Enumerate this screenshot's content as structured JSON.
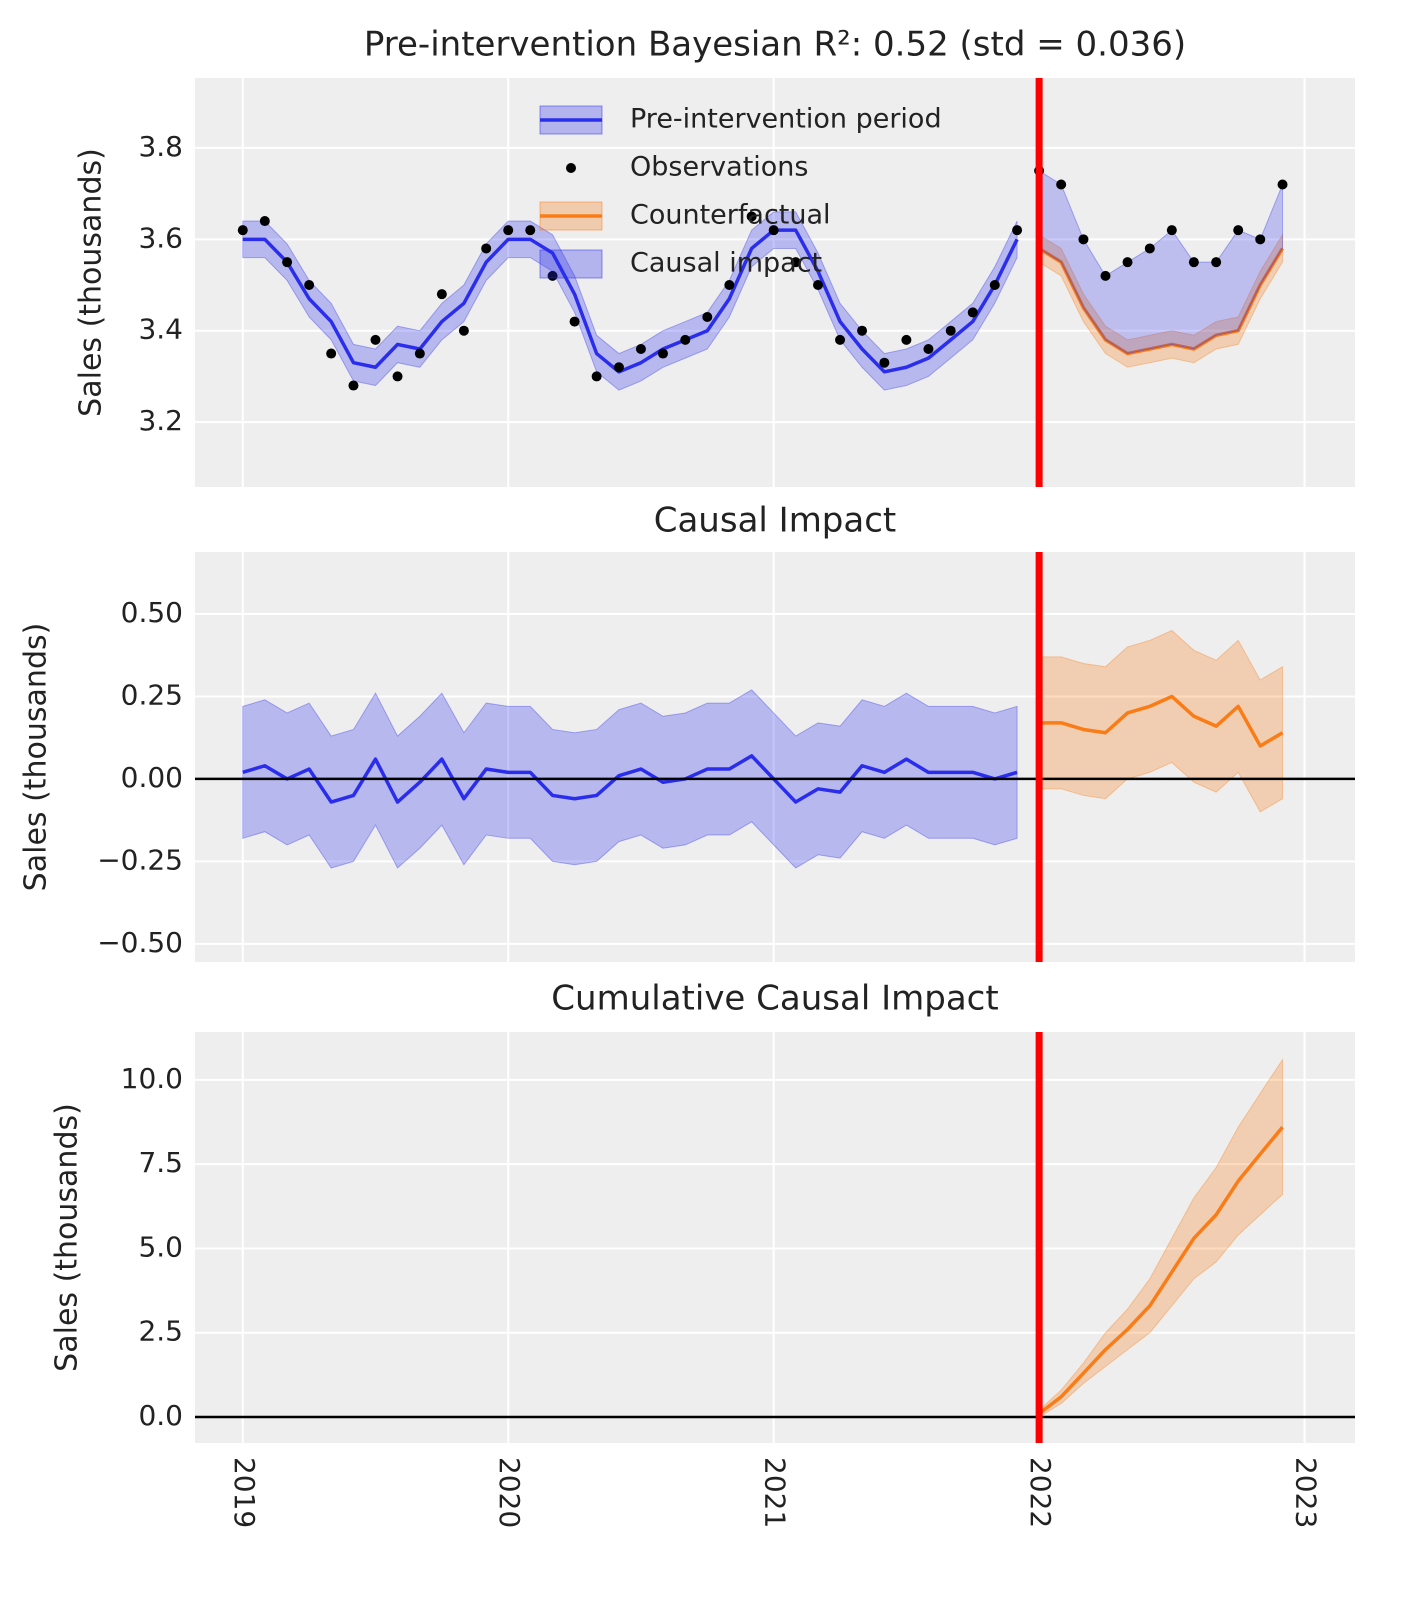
{
  "chart_data": [
    {
      "type": "line",
      "title": "Pre-intervention Bayesian R²: 0.52 (std = 0.036)",
      "y_label": "Sales (thousands)",
      "x": [
        2019,
        2019.083,
        2019.167,
        2019.25,
        2019.333,
        2019.417,
        2019.5,
        2019.583,
        2019.667,
        2019.75,
        2019.833,
        2019.917,
        2020,
        2020.083,
        2020.167,
        2020.25,
        2020.333,
        2020.417,
        2020.5,
        2020.583,
        2020.667,
        2020.75,
        2020.833,
        2020.917,
        2021,
        2021.083,
        2021.167,
        2021.25,
        2021.333,
        2021.417,
        2021.5,
        2021.583,
        2021.667,
        2021.75,
        2021.833,
        2021.917,
        2022,
        2022.083,
        2022.167,
        2022.25,
        2022.333,
        2022.417,
        2022.5,
        2022.583,
        2022.667,
        2022.75,
        2022.833,
        2022.917
      ],
      "xlim": [
        2018.82,
        2023.19
      ],
      "xticks": [
        2019,
        2020,
        2021,
        2022,
        2023
      ],
      "ylim": [
        3.058,
        3.953
      ],
      "yticks": [
        3.2,
        3.4,
        3.6,
        3.8
      ],
      "grid": true,
      "legend": "upper center",
      "vline": 2022,
      "vline_color": "#ff0000",
      "series": [
        {
          "name": "Pre-intervention period",
          "style": "line",
          "color": "#2a2eec",
          "values": [
            3.6,
            3.6,
            3.55,
            3.47,
            3.42,
            3.33,
            3.32,
            3.37,
            3.36,
            3.42,
            3.46,
            3.55,
            3.6,
            3.6,
            3.57,
            3.48,
            3.35,
            3.31,
            3.33,
            3.36,
            3.38,
            3.4,
            3.47,
            3.58,
            3.62,
            3.62,
            3.53,
            3.42,
            3.36,
            3.31,
            3.32,
            3.34,
            3.38,
            3.42,
            3.5,
            3.6,
            null,
            null,
            null,
            null,
            null,
            null,
            null,
            null,
            null,
            null,
            null,
            null
          ],
          "lower": [
            3.56,
            3.56,
            3.51,
            3.43,
            3.38,
            3.29,
            3.28,
            3.33,
            3.32,
            3.38,
            3.42,
            3.51,
            3.56,
            3.56,
            3.53,
            3.44,
            3.31,
            3.27,
            3.29,
            3.32,
            3.34,
            3.36,
            3.43,
            3.54,
            3.58,
            3.58,
            3.49,
            3.38,
            3.32,
            3.27,
            3.28,
            3.3,
            3.34,
            3.38,
            3.46,
            3.56,
            null,
            null,
            null,
            null,
            null,
            null,
            null,
            null,
            null,
            null,
            null,
            null
          ],
          "upper": [
            3.64,
            3.64,
            3.59,
            3.51,
            3.46,
            3.37,
            3.36,
            3.41,
            3.4,
            3.46,
            3.5,
            3.59,
            3.64,
            3.64,
            3.61,
            3.52,
            3.39,
            3.35,
            3.37,
            3.4,
            3.42,
            3.44,
            3.51,
            3.62,
            3.66,
            3.66,
            3.57,
            3.46,
            3.4,
            3.35,
            3.36,
            3.38,
            3.42,
            3.46,
            3.54,
            3.64,
            null,
            null,
            null,
            null,
            null,
            null,
            null,
            null,
            null,
            null,
            null,
            null
          ]
        },
        {
          "name": "Observations",
          "style": "scatter",
          "color": "#000000",
          "values": [
            3.62,
            3.64,
            3.55,
            3.5,
            3.35,
            3.28,
            3.38,
            3.3,
            3.35,
            3.48,
            3.4,
            3.58,
            3.62,
            3.62,
            3.52,
            3.42,
            3.3,
            3.32,
            3.36,
            3.35,
            3.38,
            3.43,
            3.5,
            3.65,
            3.62,
            3.55,
            3.5,
            3.38,
            3.4,
            3.33,
            3.38,
            3.36,
            3.4,
            3.44,
            3.5,
            3.62,
            3.75,
            3.72,
            3.6,
            3.52,
            3.55,
            3.58,
            3.62,
            3.55,
            3.55,
            3.62,
            3.6,
            3.72
          ]
        },
        {
          "name": "Counterfactual",
          "style": "line",
          "color": "#fa7c17",
          "values": [
            null,
            null,
            null,
            null,
            null,
            null,
            null,
            null,
            null,
            null,
            null,
            null,
            null,
            null,
            null,
            null,
            null,
            null,
            null,
            null,
            null,
            null,
            null,
            null,
            null,
            null,
            null,
            null,
            null,
            null,
            null,
            null,
            null,
            null,
            null,
            null,
            3.58,
            3.55,
            3.45,
            3.38,
            3.35,
            3.36,
            3.37,
            3.36,
            3.39,
            3.4,
            3.5,
            3.58
          ],
          "lower": [
            null,
            null,
            null,
            null,
            null,
            null,
            null,
            null,
            null,
            null,
            null,
            null,
            null,
            null,
            null,
            null,
            null,
            null,
            null,
            null,
            null,
            null,
            null,
            null,
            null,
            null,
            null,
            null,
            null,
            null,
            null,
            null,
            null,
            null,
            null,
            null,
            3.55,
            3.52,
            3.42,
            3.35,
            3.32,
            3.33,
            3.34,
            3.33,
            3.36,
            3.37,
            3.47,
            3.55
          ],
          "upper": [
            null,
            null,
            null,
            null,
            null,
            null,
            null,
            null,
            null,
            null,
            null,
            null,
            null,
            null,
            null,
            null,
            null,
            null,
            null,
            null,
            null,
            null,
            null,
            null,
            null,
            null,
            null,
            null,
            null,
            null,
            null,
            null,
            null,
            null,
            null,
            null,
            3.61,
            3.58,
            3.48,
            3.41,
            3.38,
            3.39,
            3.4,
            3.39,
            3.42,
            3.43,
            3.53,
            3.61
          ]
        },
        {
          "name": "Causal impact",
          "style": "fill",
          "color": "#2a2eec"
        }
      ]
    },
    {
      "type": "line",
      "title": "Causal Impact",
      "y_label": "Sales (thousands)",
      "x": [
        2019,
        2019.083,
        2019.167,
        2019.25,
        2019.333,
        2019.417,
        2019.5,
        2019.583,
        2019.667,
        2019.75,
        2019.833,
        2019.917,
        2020,
        2020.083,
        2020.167,
        2020.25,
        2020.333,
        2020.417,
        2020.5,
        2020.583,
        2020.667,
        2020.75,
        2020.833,
        2020.917,
        2021,
        2021.083,
        2021.167,
        2021.25,
        2021.333,
        2021.417,
        2021.5,
        2021.583,
        2021.667,
        2021.75,
        2021.833,
        2021.917,
        2022,
        2022.083,
        2022.167,
        2022.25,
        2022.333,
        2022.417,
        2022.5,
        2022.583,
        2022.667,
        2022.75,
        2022.833,
        2022.917
      ],
      "xlim": [
        2018.82,
        2023.19
      ],
      "xticks": [
        2019,
        2020,
        2021,
        2022,
        2023
      ],
      "ylim": [
        -0.555,
        0.688
      ],
      "yticks": [
        {
          "value": -0.5,
          "label": "−0.50"
        },
        {
          "value": -0.25,
          "label": "−0.25"
        },
        {
          "value": 0,
          "label": "0.00"
        },
        0.25,
        {
          "value": 0.5,
          "label": "0.50"
        }
      ],
      "grid": true,
      "hline": 0,
      "vline": 2022,
      "vline_color": "#ff0000",
      "series": [
        {
          "style": "line",
          "color": "#2a2eec",
          "values": [
            0.02,
            0.04,
            0.0,
            0.03,
            -0.07,
            -0.05,
            0.06,
            -0.07,
            -0.01,
            0.06,
            -0.06,
            0.03,
            0.02,
            0.02,
            -0.05,
            -0.06,
            -0.05,
            0.01,
            0.03,
            -0.01,
            0.0,
            0.03,
            0.03,
            0.07,
            0.0,
            -0.07,
            -0.03,
            -0.04,
            0.04,
            0.02,
            0.06,
            0.02,
            0.02,
            0.02,
            0.0,
            0.02,
            null,
            null,
            null,
            null,
            null,
            null,
            null,
            null,
            null,
            null,
            null,
            null
          ],
          "lower": [
            -0.18,
            -0.16,
            -0.2,
            -0.17,
            -0.27,
            -0.25,
            -0.14,
            -0.27,
            -0.21,
            -0.14,
            -0.26,
            -0.17,
            -0.18,
            -0.18,
            -0.25,
            -0.26,
            -0.25,
            -0.19,
            -0.17,
            -0.21,
            -0.2,
            -0.17,
            -0.17,
            -0.13,
            -0.2,
            -0.27,
            -0.23,
            -0.24,
            -0.16,
            -0.18,
            -0.14,
            -0.18,
            -0.18,
            -0.18,
            -0.2,
            -0.18,
            null,
            null,
            null,
            null,
            null,
            null,
            null,
            null,
            null,
            null,
            null,
            null
          ],
          "upper": [
            0.22,
            0.24,
            0.2,
            0.23,
            0.13,
            0.15,
            0.26,
            0.13,
            0.19,
            0.26,
            0.14,
            0.23,
            0.22,
            0.22,
            0.15,
            0.14,
            0.15,
            0.21,
            0.23,
            0.19,
            0.2,
            0.23,
            0.23,
            0.27,
            0.2,
            0.13,
            0.17,
            0.16,
            0.24,
            0.22,
            0.26,
            0.22,
            0.22,
            0.22,
            0.2,
            0.22,
            null,
            null,
            null,
            null,
            null,
            null,
            null,
            null,
            null,
            null,
            null,
            null
          ]
        },
        {
          "style": "line",
          "color": "#fa7c17",
          "values": [
            null,
            null,
            null,
            null,
            null,
            null,
            null,
            null,
            null,
            null,
            null,
            null,
            null,
            null,
            null,
            null,
            null,
            null,
            null,
            null,
            null,
            null,
            null,
            null,
            null,
            null,
            null,
            null,
            null,
            null,
            null,
            null,
            null,
            null,
            null,
            null,
            0.17,
            0.17,
            0.15,
            0.14,
            0.2,
            0.22,
            0.25,
            0.19,
            0.16,
            0.22,
            0.1,
            0.14
          ],
          "lower": [
            null,
            null,
            null,
            null,
            null,
            null,
            null,
            null,
            null,
            null,
            null,
            null,
            null,
            null,
            null,
            null,
            null,
            null,
            null,
            null,
            null,
            null,
            null,
            null,
            null,
            null,
            null,
            null,
            null,
            null,
            null,
            null,
            null,
            null,
            null,
            null,
            -0.03,
            -0.03,
            -0.05,
            -0.06,
            0.0,
            0.02,
            0.05,
            -0.01,
            -0.04,
            0.02,
            -0.1,
            -0.06
          ],
          "upper": [
            null,
            null,
            null,
            null,
            null,
            null,
            null,
            null,
            null,
            null,
            null,
            null,
            null,
            null,
            null,
            null,
            null,
            null,
            null,
            null,
            null,
            null,
            null,
            null,
            null,
            null,
            null,
            null,
            null,
            null,
            null,
            null,
            null,
            null,
            null,
            null,
            0.37,
            0.37,
            0.35,
            0.34,
            0.4,
            0.42,
            0.45,
            0.39,
            0.36,
            0.42,
            0.3,
            0.34
          ]
        }
      ]
    },
    {
      "type": "line",
      "title": "Cumulative Causal Impact",
      "y_label": "Sales (thousands)",
      "x": [
        2019,
        2019.083,
        2019.167,
        2019.25,
        2019.333,
        2019.417,
        2019.5,
        2019.583,
        2019.667,
        2019.75,
        2019.833,
        2019.917,
        2020,
        2020.083,
        2020.167,
        2020.25,
        2020.333,
        2020.417,
        2020.5,
        2020.583,
        2020.667,
        2020.75,
        2020.833,
        2020.917,
        2021,
        2021.083,
        2021.167,
        2021.25,
        2021.333,
        2021.417,
        2021.5,
        2021.583,
        2021.667,
        2021.75,
        2021.833,
        2021.917,
        2022,
        2022.083,
        2022.167,
        2022.25,
        2022.333,
        2022.417,
        2022.5,
        2022.583,
        2022.667,
        2022.75,
        2022.833,
        2022.917
      ],
      "xlim": [
        2018.82,
        2023.19
      ],
      "xticks": [
        2019,
        2020,
        2021,
        2022,
        2023
      ],
      "ylim": [
        -0.77,
        11.42
      ],
      "yticks": [
        {
          "value": 0,
          "label": "0.0"
        },
        2.5,
        {
          "value": 5,
          "label": "5.0"
        },
        7.5,
        {
          "value": 10,
          "label": "10.0"
        }
      ],
      "grid": true,
      "hline": 0,
      "vline": 2022,
      "vline_color": "#ff0000",
      "series": [
        {
          "style": "line",
          "color": "#fa7c17",
          "values": [
            null,
            null,
            null,
            null,
            null,
            null,
            null,
            null,
            null,
            null,
            null,
            null,
            null,
            null,
            null,
            null,
            null,
            null,
            null,
            null,
            null,
            null,
            null,
            null,
            null,
            null,
            null,
            null,
            null,
            null,
            null,
            null,
            null,
            null,
            null,
            null,
            0.1,
            0.6,
            1.3,
            2.0,
            2.6,
            3.3,
            4.3,
            5.3,
            6.0,
            7.0,
            7.8,
            8.6
          ],
          "lower": [
            null,
            null,
            null,
            null,
            null,
            null,
            null,
            null,
            null,
            null,
            null,
            null,
            null,
            null,
            null,
            null,
            null,
            null,
            null,
            null,
            null,
            null,
            null,
            null,
            null,
            null,
            null,
            null,
            null,
            null,
            null,
            null,
            null,
            null,
            null,
            null,
            0.0,
            0.4,
            1.0,
            1.5,
            2.0,
            2.5,
            3.3,
            4.1,
            4.6,
            5.4,
            6.0,
            6.6
          ],
          "upper": [
            null,
            null,
            null,
            null,
            null,
            null,
            null,
            null,
            null,
            null,
            null,
            null,
            null,
            null,
            null,
            null,
            null,
            null,
            null,
            null,
            null,
            null,
            null,
            null,
            null,
            null,
            null,
            null,
            null,
            null,
            null,
            null,
            null,
            null,
            null,
            null,
            0.2,
            0.8,
            1.6,
            2.5,
            3.2,
            4.1,
            5.3,
            6.5,
            7.4,
            8.6,
            9.6,
            10.6
          ]
        }
      ]
    }
  ]
}
